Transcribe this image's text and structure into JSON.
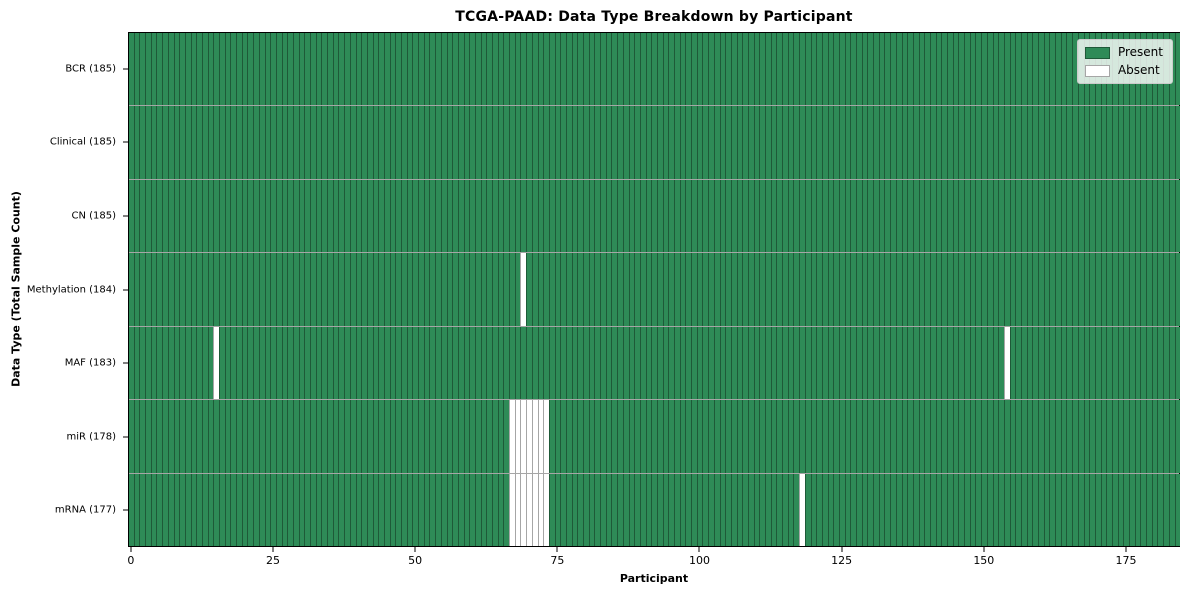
{
  "title": "TCGA-PAAD: Data Type Breakdown by Participant",
  "chart_data": {
    "type": "heatmap",
    "title": "TCGA-PAAD: Data Type Breakdown by Participant",
    "xlabel": "Participant",
    "ylabel": "Data Type (Total Sample Count)",
    "n_participants": 185,
    "x_range": [
      0,
      184
    ],
    "x_ticks": [
      0,
      25,
      50,
      75,
      100,
      125,
      150,
      175
    ],
    "grid": "cell-borders",
    "legend": {
      "position": "upper right",
      "entries": [
        {
          "label": "Present",
          "color": "#2e8b57"
        },
        {
          "label": "Absent",
          "color": "#ffffff"
        }
      ]
    },
    "colors": {
      "present": "#2e8b57",
      "absent": "#ffffff",
      "cell_edge": "rgba(0,0,0,0.35)"
    },
    "rows": [
      {
        "label": "BCR (185)",
        "data_type": "BCR",
        "present_count": 185,
        "absent_participants": []
      },
      {
        "label": "Clinical (185)",
        "data_type": "Clinical",
        "present_count": 185,
        "absent_participants": []
      },
      {
        "label": "CN (185)",
        "data_type": "CN",
        "present_count": 185,
        "absent_participants": []
      },
      {
        "label": "Methylation (184)",
        "data_type": "Methylation",
        "present_count": 184,
        "absent_participants": [
          69
        ]
      },
      {
        "label": "MAF (183)",
        "data_type": "MAF",
        "present_count": 183,
        "absent_participants": [
          15,
          154
        ]
      },
      {
        "label": "miR (178)",
        "data_type": "miR",
        "present_count": 178,
        "absent_participants": [
          67,
          68,
          69,
          70,
          71,
          72,
          73
        ]
      },
      {
        "label": "mRNA (177)",
        "data_type": "mRNA",
        "present_count": 177,
        "absent_participants": [
          67,
          68,
          69,
          70,
          71,
          72,
          73,
          118
        ]
      }
    ]
  }
}
